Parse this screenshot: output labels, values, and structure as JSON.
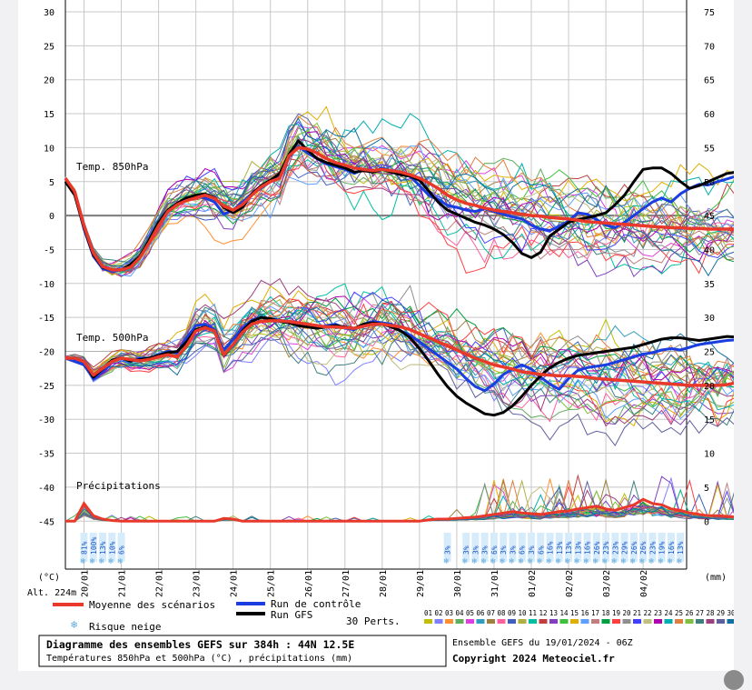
{
  "chart_data": {
    "type": "line",
    "title": "Diagramme des ensembles GEFS sur 384h : 44N 12.5E",
    "subtitle": "Températures 850hPa et 500hPa (°C) , précipitations (mm)",
    "ensemble_info": "Ensemble GEFS du 19/01/2024 - 06Z",
    "copyright": "Copyright 2024 Meteociel.fr",
    "left_unit": "(°C)",
    "right_unit": "(mm)",
    "altitude": "Alt. 224m",
    "yleft_ticks": [
      "30",
      "25",
      "20",
      "15",
      "10",
      "5",
      "0",
      "-5",
      "-10",
      "-15",
      "-20",
      "-25",
      "-30",
      "-35",
      "-40",
      "-45"
    ],
    "yright_ticks": [
      "75",
      "70",
      "65",
      "60",
      "55",
      "50",
      "45",
      "40",
      "35",
      "30",
      "25",
      "20",
      "15",
      "10",
      "5",
      "0"
    ],
    "x_labels": [
      "20/01",
      "21/01",
      "22/01",
      "23/01",
      "24/01",
      "25/01",
      "26/01",
      "27/01",
      "28/01",
      "29/01",
      "30/01",
      "31/01",
      "01/02",
      "02/02",
      "03/02",
      "04/02"
    ],
    "panel_labels": {
      "t850": "Temp. 850hPa",
      "t500": "Temp. 500hPa",
      "precip": "Précipitations"
    },
    "time_step_hours": 6,
    "series": [
      {
        "name": "Moyenne des scénarios",
        "color": "#e8392b",
        "panel": "t850",
        "values": [
          5.5,
          3.5,
          -1.5,
          -5.5,
          -7.5,
          -8,
          -8,
          -7.6,
          -6.2,
          -4,
          -1.5,
          0.6,
          1.6,
          2.2,
          2.6,
          3,
          2.5,
          1.4,
          0.8,
          1.6,
          3,
          4.2,
          5,
          5.5,
          8.8,
          10,
          9.8,
          9.2,
          8.4,
          7.8,
          7.4,
          7,
          6.8,
          6.6,
          6.8,
          6.6,
          6.4,
          6,
          5.5,
          4.8,
          4,
          3,
          2.3,
          1.8,
          1.5,
          1.1,
          0.8,
          0.6,
          0.4,
          0.2,
          0,
          -0.1,
          -0.3,
          -0.4,
          -0.5,
          -0.7,
          -0.9,
          -1,
          -1.1,
          -1.2,
          -1.3,
          -1.4,
          -1.5,
          -1.6,
          -1.7,
          -1.8,
          -1.8,
          -1.9,
          -1.9,
          -2,
          -2,
          -2,
          -2,
          -2,
          -2
        ]
      },
      {
        "name": "Run de contrôle",
        "color": "#1a3ee0",
        "panel": "t850",
        "values": [
          5,
          3.2,
          -2,
          -6,
          -7.8,
          -8.2,
          -8,
          -7.4,
          -6,
          -3.8,
          -1.2,
          0.8,
          1.6,
          2.4,
          2.8,
          2.6,
          2,
          0.2,
          0.8,
          2,
          3.2,
          4,
          5,
          5.8,
          8.6,
          10.2,
          9.2,
          8.4,
          7.6,
          7.2,
          6.8,
          6.2,
          6.8,
          6.4,
          7,
          6.6,
          6.2,
          5.8,
          4.4,
          3,
          2.4,
          1.5,
          1.2,
          0.8,
          0.6,
          1,
          0.6,
          0.2,
          -0.2,
          -0.5,
          -1.4,
          -2,
          -2.2,
          -1.6,
          -0.8,
          0.4,
          0.2,
          -0.6,
          -1.4,
          -1.8,
          -1,
          0,
          1,
          2,
          2.6,
          2,
          3.2,
          4,
          4.6,
          4.5,
          5,
          5.4,
          5.8,
          6.2,
          6.3,
          6.2
        ]
      },
      {
        "name": "Run GFS",
        "color": "#000000",
        "panel": "t850",
        "values": [
          5,
          3,
          -1.8,
          -5.8,
          -7.6,
          -8,
          -8,
          -7.2,
          -6,
          -3.6,
          -1,
          0.8,
          1.8,
          2.6,
          3,
          3.2,
          2.6,
          1.2,
          0.4,
          1.2,
          3.2,
          4.4,
          5.2,
          6.2,
          9,
          11,
          9.6,
          8.4,
          7.8,
          7.4,
          7,
          6.4,
          6.6,
          6.4,
          6.8,
          6.4,
          6,
          5.8,
          5.2,
          3.6,
          2,
          0.8,
          0.2,
          -0.4,
          -1,
          -1.4,
          -2,
          -2.8,
          -4,
          -5.6,
          -6.2,
          -5.4,
          -3,
          -2,
          -1,
          -0.6,
          -0.3,
          0,
          0.4,
          1.6,
          3,
          5,
          6.8,
          7,
          7,
          6.2,
          5,
          4,
          4.4,
          5,
          5.6,
          6.2,
          6.4,
          6.6,
          6.5
        ]
      },
      {
        "name": "Moyenne des scénarios",
        "color": "#e8392b",
        "panel": "t500",
        "values": [
          -21,
          -21,
          -21.5,
          -23.5,
          -22.5,
          -21.5,
          -21,
          -21.2,
          -21.4,
          -21.2,
          -20.8,
          -20.5,
          -20.8,
          -19.2,
          -17,
          -16.5,
          -17,
          -20.5,
          -19,
          -17.2,
          -16,
          -15.6,
          -15.5,
          -15.5,
          -15.6,
          -15.8,
          -16,
          -16.2,
          -16.4,
          -16.4,
          -16.5,
          -16.6,
          -16.3,
          -16,
          -16,
          -16.2,
          -16.4,
          -16.8,
          -17.4,
          -18,
          -18.6,
          -19.2,
          -19.8,
          -20.4,
          -21,
          -21.5,
          -22,
          -22.3,
          -22.6,
          -23,
          -23.2,
          -23.4,
          -23.5,
          -23.6,
          -23.6,
          -23.7,
          -23.8,
          -24,
          -24.1,
          -24.2,
          -24.3,
          -24.4,
          -24.5,
          -24.6,
          -24.7,
          -24.8,
          -24.9,
          -25,
          -25,
          -25,
          -25,
          -24.9,
          -24.6,
          -24.3,
          -24,
          -23.5
        ]
      },
      {
        "name": "Run de contrôle",
        "color": "#1a3ee0",
        "panel": "t500",
        "values": [
          -21,
          -21.5,
          -22,
          -24,
          -23,
          -21.5,
          -21,
          -21.5,
          -21,
          -21,
          -20.5,
          -20,
          -20.2,
          -18,
          -16.2,
          -16,
          -16.8,
          -19.8,
          -18.2,
          -16.6,
          -15.4,
          -15,
          -15.2,
          -15.4,
          -15.8,
          -16,
          -16.2,
          -16.6,
          -16.2,
          -16,
          -16.6,
          -16.8,
          -16,
          -15.6,
          -15.8,
          -16,
          -17,
          -17.6,
          -18.6,
          -19.6,
          -20.6,
          -21.6,
          -22.6,
          -24,
          -25.2,
          -25.8,
          -24.8,
          -23.4,
          -22.6,
          -22,
          -22.6,
          -23.8,
          -24.8,
          -25.6,
          -24,
          -22.8,
          -22.4,
          -22.2,
          -22,
          -21.6,
          -21.2,
          -20.8,
          -20.4,
          -20.2,
          -19.8,
          -19.6,
          -19.8,
          -19.4,
          -19,
          -18.8,
          -18.6,
          -18.4,
          -18.3,
          -18.2,
          -18.2,
          -18.2
        ]
      },
      {
        "name": "Run GFS",
        "color": "#000000",
        "panel": "t500",
        "values": [
          -21,
          -21,
          -21.5,
          -23.8,
          -22.6,
          -21.3,
          -21,
          -21.4,
          -21.2,
          -21,
          -20.6,
          -20.2,
          -20,
          -18.6,
          -16.8,
          -16.4,
          -17,
          -20.6,
          -19,
          -17,
          -15.6,
          -15,
          -15.2,
          -15.6,
          -15.8,
          -16.2,
          -16.4,
          -16.6,
          -16.4,
          -16.2,
          -16.4,
          -16.6,
          -16,
          -15.8,
          -16,
          -16.4,
          -17,
          -18,
          -19.6,
          -21.4,
          -23.4,
          -25.2,
          -26.6,
          -27.6,
          -28.4,
          -29.2,
          -29.4,
          -29,
          -28,
          -26.6,
          -25,
          -23.6,
          -22.4,
          -21.6,
          -21,
          -20.6,
          -20.4,
          -20.2,
          -20,
          -19.8,
          -19.6,
          -19.4,
          -19,
          -18.6,
          -18.2,
          -18,
          -18,
          -18.2,
          -18.4,
          -18.2,
          -18,
          -17.8,
          -17.9,
          -18,
          -18,
          -18.1
        ]
      }
    ],
    "precip_mean": [
      0,
      0,
      2.6,
      0.8,
      0.3,
      0.1,
      0,
      0,
      0,
      0,
      0,
      0,
      0,
      0,
      0,
      0,
      0,
      0.4,
      0.3,
      0,
      0,
      0,
      0,
      0,
      0,
      0,
      0,
      0,
      0,
      0,
      0,
      0,
      0,
      0,
      0,
      0,
      0,
      0,
      0,
      0.2,
      0.3,
      0.3,
      0.4,
      0.5,
      0.6,
      0.8,
      1,
      1.2,
      1.4,
      1.2,
      1.1,
      1,
      1.2,
      1.4,
      1.5,
      1.8,
      2,
      2.2,
      1.8,
      1.6,
      2,
      2.4,
      3.2,
      2.6,
      2.4,
      1.8,
      1.6,
      1.2,
      1,
      0.8,
      0.8,
      0.7,
      0.6,
      0.4,
      0.2,
      0
    ],
    "snow_risk": [
      {
        "hour": 12,
        "label": "81%"
      },
      {
        "hour": 18,
        "label": "100%"
      },
      {
        "hour": 24,
        "label": "13%"
      },
      {
        "hour": 30,
        "label": "10%"
      },
      {
        "hour": 36,
        "label": "6%"
      },
      {
        "hour": 246,
        "label": "3%"
      },
      {
        "hour": 258,
        "label": "3%"
      },
      {
        "hour": 264,
        "label": "3%"
      },
      {
        "hour": 270,
        "label": "3%"
      },
      {
        "hour": 276,
        "label": "6%"
      },
      {
        "hour": 282,
        "label": "3%"
      },
      {
        "hour": 288,
        "label": "3%"
      },
      {
        "hour": 294,
        "label": "6%"
      },
      {
        "hour": 300,
        "label": "3%"
      },
      {
        "hour": 306,
        "label": "6%"
      },
      {
        "hour": 312,
        "label": "16%"
      },
      {
        "hour": 318,
        "label": "13%"
      },
      {
        "hour": 324,
        "label": "13%"
      },
      {
        "hour": 330,
        "label": "13%"
      },
      {
        "hour": 336,
        "label": "16%"
      },
      {
        "hour": 342,
        "label": "26%"
      },
      {
        "hour": 348,
        "label": "23%"
      },
      {
        "hour": 354,
        "label": "23%"
      },
      {
        "hour": 360,
        "label": "29%"
      },
      {
        "hour": 366,
        "label": "26%"
      },
      {
        "hour": 372,
        "label": "26%"
      },
      {
        "hour": 378,
        "label": "23%"
      },
      {
        "hour": 384,
        "label": "19%"
      },
      {
        "hour": 390,
        "label": "16%"
      },
      {
        "hour": 396,
        "label": "13%"
      }
    ],
    "legend": {
      "mean": "Moyenne des scénarios",
      "control": "Run de contrôle",
      "gfs": "Run GFS",
      "snow": "Risque neige",
      "perts": "30 Perts."
    },
    "perturbations": [
      "01",
      "02",
      "03",
      "04",
      "05",
      "06",
      "07",
      "08",
      "09",
      "10",
      "11",
      "12",
      "13",
      "14",
      "15",
      "16",
      "17",
      "18",
      "19",
      "20",
      "21",
      "22",
      "23",
      "24",
      "25",
      "26",
      "27",
      "28",
      "29",
      "30"
    ],
    "pert_colors": [
      "#c0c000",
      "#7f7fff",
      "#ff8f2f",
      "#5faf5f",
      "#df3fdf",
      "#2f9fbf",
      "#9f7f3f",
      "#ff5f9f",
      "#3f5fbf",
      "#afaf3f",
      "#00bf9f",
      "#bf3f3f",
      "#7f3fbf",
      "#3fbf3f",
      "#dfaf00",
      "#5f9fff",
      "#bf7f7f",
      "#009f3f",
      "#ff3f3f",
      "#8f8f8f",
      "#3f3fff",
      "#bfbf7f",
      "#af00af",
      "#00afaf",
      "#df7f3f",
      "#7fbf3f",
      "#3f7f7f",
      "#9f3f7f",
      "#5f5f9f",
      "#0f6f9f"
    ]
  }
}
